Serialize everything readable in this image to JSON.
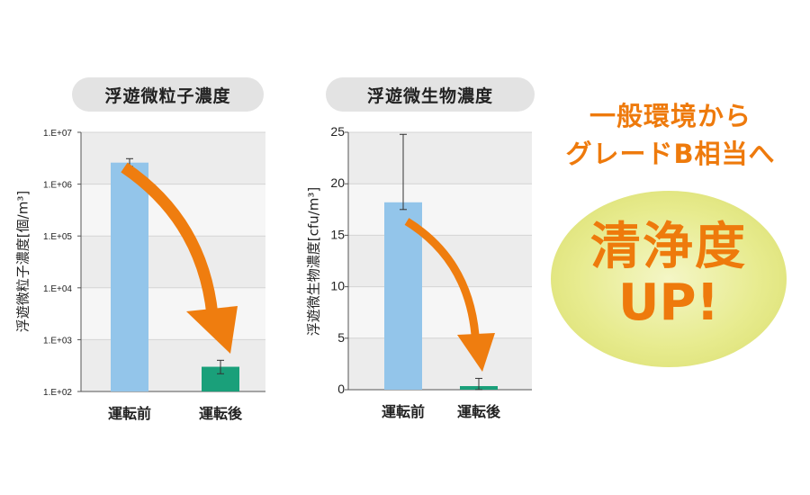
{
  "chart_data": [
    {
      "type": "bar",
      "title": "浮遊微粒子濃度",
      "ylabel": "浮遊微粒子濃度[個/m³]",
      "scale": "log",
      "ylim": [
        100,
        10000000
      ],
      "yticks": [
        "1.E+02",
        "1.E+03",
        "1.E+04",
        "1.E+05",
        "1.E+06",
        "1.E+07"
      ],
      "categories": [
        "運転前",
        "運転後"
      ],
      "values": [
        2600000,
        300
      ],
      "error_low": [
        2200000,
        220
      ],
      "error_high": [
        3100000,
        400
      ],
      "colors": [
        "#93c5ea",
        "#1aa07a"
      ],
      "grid": true
    },
    {
      "type": "bar",
      "title": "浮遊微生物濃度",
      "ylabel": "浮遊微生物濃度[cfu/m³]",
      "scale": "linear",
      "ylim": [
        0,
        25
      ],
      "yticks": [
        "0",
        "5",
        "10",
        "15",
        "20",
        "25"
      ],
      "categories": [
        "運転前",
        "運転後"
      ],
      "values": [
        18.2,
        0.35
      ],
      "error_low": [
        17.5,
        0.0
      ],
      "error_high": [
        24.8,
        1.1
      ],
      "colors": [
        "#93c5ea",
        "#1aa07a"
      ],
      "grid": true
    }
  ],
  "promo": {
    "line1": "一般環境から",
    "line2": "グレードB相当へ",
    "big1": "清浄度",
    "big2": "UP!"
  },
  "colors": {
    "arrow": "#ef7d0f",
    "accent": "#ee7a0c"
  }
}
